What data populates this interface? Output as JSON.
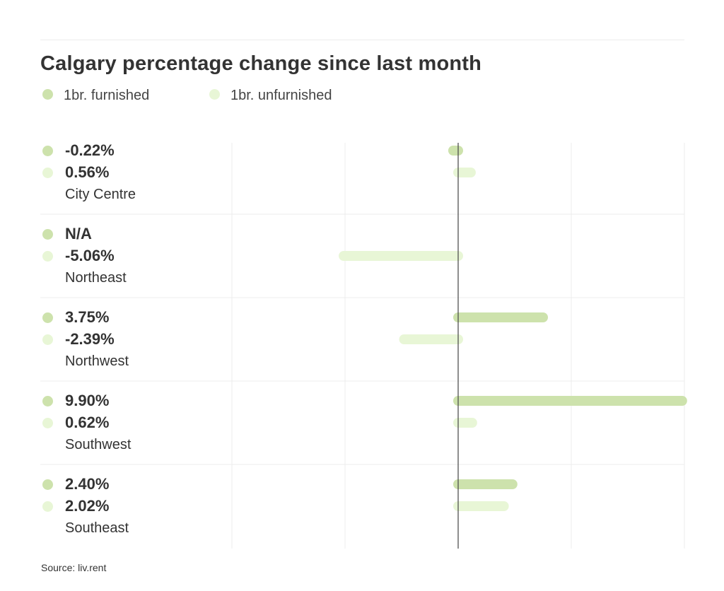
{
  "chart_data": {
    "type": "bar",
    "orientation": "horizontal",
    "title": "Calgary percentage change since last month",
    "categories": [
      "City Centre",
      "Northeast",
      "Northwest",
      "Southwest",
      "Southeast"
    ],
    "series": [
      {
        "name": "1br. furnished",
        "color": "#cde2ac",
        "values": [
          -0.22,
          null,
          3.75,
          9.9,
          2.4
        ],
        "labels": [
          "-0.22%",
          "N/A",
          "3.75%",
          "9.90%",
          "2.40%"
        ]
      },
      {
        "name": "1br. unfurnished",
        "color": "#e8f6d6",
        "values": [
          0.56,
          -5.06,
          -2.39,
          0.62,
          2.02
        ],
        "labels": [
          "0.56%",
          "-5.06%",
          "-2.39%",
          "0.62%",
          "2.02%"
        ]
      }
    ],
    "xlim": [
      -10,
      10
    ],
    "grid": true,
    "legend_position": "top-left"
  },
  "source": "Source: liv.rent"
}
